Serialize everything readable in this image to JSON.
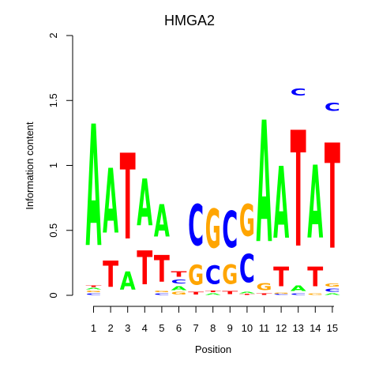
{
  "chart_data": {
    "type": "sequence-logo",
    "title": "HMGA2",
    "xlabel": "Position",
    "ylabel": "Information content",
    "ylim": [
      0,
      2
    ],
    "yticks": [
      "0",
      "0.5",
      "1",
      "1.5",
      "2"
    ],
    "positions": [
      "1",
      "2",
      "3",
      "4",
      "5",
      "6",
      "7",
      "8",
      "9",
      "10",
      "11",
      "12",
      "13",
      "14",
      "15"
    ],
    "colors": {
      "A": "#00ff00",
      "C": "#0000ff",
      "G": "#ffa500",
      "T": "#ff0000"
    },
    "stacks": [
      [
        [
          "C",
          0.02
        ],
        [
          "G",
          0.02
        ],
        [
          "A",
          0.02
        ],
        [
          "T",
          0.02
        ],
        [
          "A",
          1.5
        ]
      ],
      [
        [
          "T",
          0.32
        ],
        [
          "A",
          0.8
        ]
      ],
      [
        [
          "A",
          0.22
        ],
        [
          "T",
          1.06
        ]
      ],
      [
        [
          "T",
          0.42
        ],
        [
          "A",
          0.58
        ]
      ],
      [
        [
          "C",
          0.02
        ],
        [
          "G",
          0.02
        ],
        [
          "T",
          0.33
        ],
        [
          "A",
          0.4
        ]
      ],
      [
        [
          "G",
          0.03
        ],
        [
          "A",
          0.05
        ],
        [
          "C",
          0.05
        ],
        [
          "T",
          0.07
        ]
      ],
      [
        [
          "T",
          0.03
        ],
        [
          "G",
          0.25
        ],
        [
          "C",
          0.51
        ]
      ],
      [
        [
          "A",
          0.02
        ],
        [
          "T",
          0.02
        ],
        [
          "C",
          0.23
        ],
        [
          "G",
          0.48
        ]
      ],
      [
        [
          "T",
          0.04
        ],
        [
          "G",
          0.24
        ],
        [
          "C",
          0.45
        ]
      ],
      [
        [
          "T",
          0.01
        ],
        [
          "A",
          0.02
        ],
        [
          "C",
          0.35
        ],
        [
          "G",
          0.39
        ]
      ],
      [
        [
          "T",
          0.02
        ],
        [
          "G",
          0.09
        ],
        [
          "A",
          1.5
        ]
      ],
      [
        [
          "C",
          0.01
        ],
        [
          "G",
          0.01
        ],
        [
          "T",
          0.24
        ],
        [
          "A",
          0.89
        ]
      ],
      [
        [
          "C",
          0.02
        ],
        [
          "A",
          0.07
        ],
        [
          "T",
          1.43
        ],
        [
          "C",
          0.09
        ]
      ],
      [
        [
          "G",
          0.02
        ],
        [
          "T",
          0.24
        ],
        [
          "A",
          0.9
        ]
      ],
      [
        [
          "A",
          0.02
        ],
        [
          "C",
          0.04
        ],
        [
          "G",
          0.04
        ],
        [
          "T",
          1.3
        ],
        [
          "C",
          0.1
        ]
      ]
    ]
  }
}
